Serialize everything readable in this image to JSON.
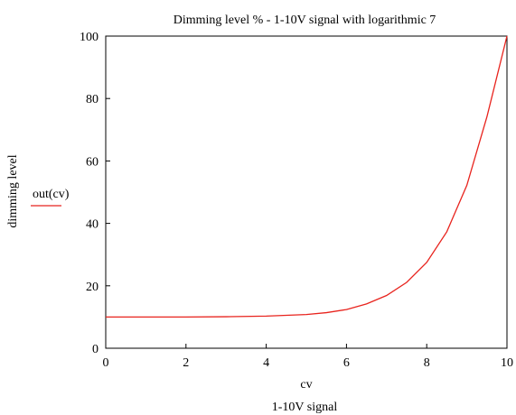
{
  "chart_data": {
    "type": "line",
    "title": "Dimming level % - 1-10V signal with logarithmic 7",
    "xlabel": "cv",
    "xlabel2": "1-10V signal",
    "ylabel": "dimming level",
    "legend_label": "out(cv)",
    "xlim": [
      0,
      10
    ],
    "ylim": [
      0,
      100
    ],
    "xticks": [
      "0",
      "2",
      "4",
      "6",
      "8",
      "10"
    ],
    "yticks": [
      "0",
      "20",
      "40",
      "60",
      "80",
      "100"
    ],
    "grid": false,
    "legend_position": "left",
    "series": [
      {
        "name": "out(cv)",
        "color": "#e8231d",
        "x": [
          0,
          1,
          2,
          3,
          4,
          5,
          5.5,
          6,
          6.5,
          7,
          7.5,
          8,
          8.5,
          9,
          9.5,
          10
        ],
        "y": [
          10,
          10,
          10,
          10.1,
          10.3,
          10.8,
          11.4,
          12.4,
          14.2,
          16.9,
          21.1,
          27.5,
          37.3,
          52.2,
          74.1,
          100
        ]
      }
    ]
  }
}
